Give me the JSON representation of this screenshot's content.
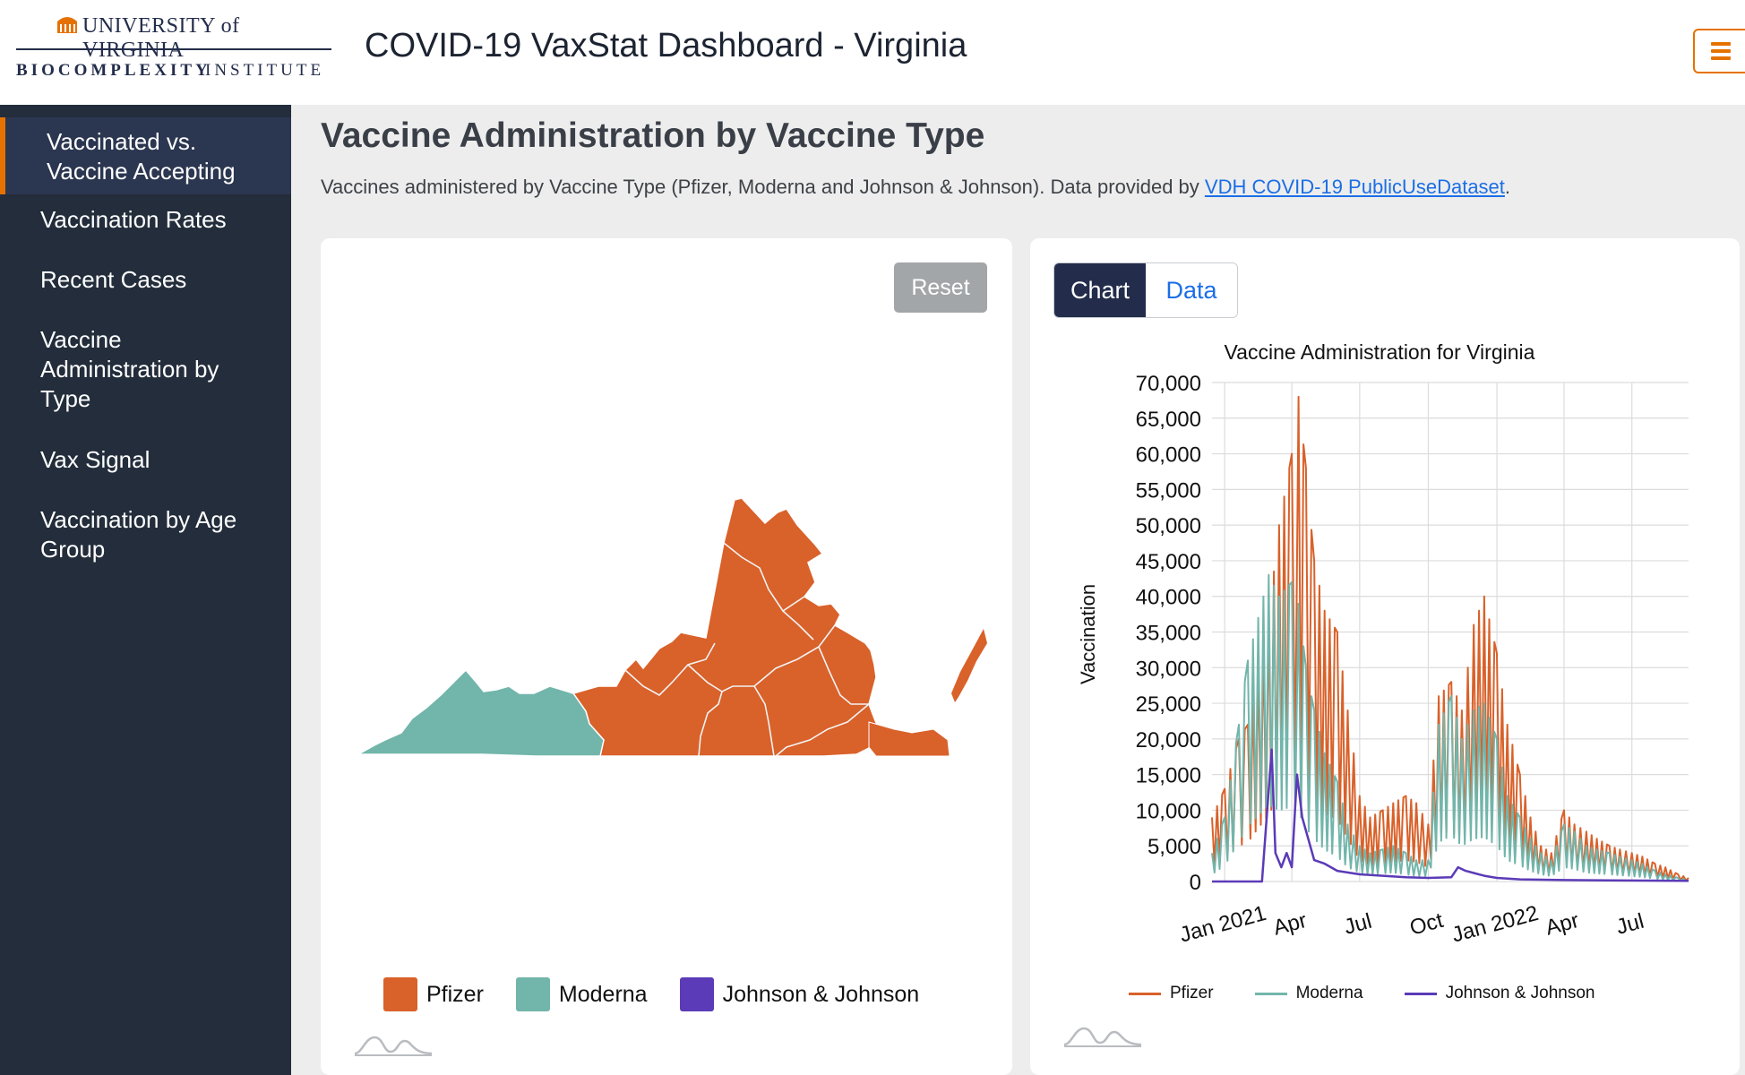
{
  "header": {
    "logo_university": "UNIVERSITY of VIRGINIA",
    "logo_biocomplexity": "BIOCOMPLEXITY",
    "logo_institute": "INSTITUTE",
    "title": "COVID-19 VaxStat Dashboard - Virginia",
    "menu_icon": "hamburger-menu-icon"
  },
  "sidebar": {
    "items": [
      {
        "label": "Vaccinated vs. Vaccine Accepting",
        "active": true
      },
      {
        "label": "Vaccination Rates",
        "active": false
      },
      {
        "label": "Recent Cases",
        "active": false
      },
      {
        "label": "Vaccine Administration by Type",
        "active": false
      },
      {
        "label": "Vax Signal",
        "active": false
      },
      {
        "label": "Vaccination by Age Group",
        "active": false
      }
    ]
  },
  "main": {
    "title": "Vaccine Administration by Vaccine Type",
    "description_prefix": "Vaccines administered by Vaccine Type (Pfizer, Moderna and Johnson & Johnson). Data provided by ",
    "description_link": "VDH COVID-19 PublicUseDataset",
    "description_suffix": "."
  },
  "map_card": {
    "reset_label": "Reset",
    "legend": [
      {
        "label": "Pfizer",
        "color": "#d9612a"
      },
      {
        "label": "Moderna",
        "color": "#72b5ab"
      },
      {
        "label": "Johnson & Johnson",
        "color": "#5b3bb7"
      }
    ]
  },
  "chart_card": {
    "tabs": [
      {
        "label": "Chart",
        "active": true
      },
      {
        "label": "Data",
        "active": false
      }
    ]
  },
  "chart_data": {
    "type": "line",
    "title": "Vaccine Administration for Virginia",
    "xlabel": "",
    "ylabel": "Vaccination",
    "ylim": [
      0,
      70000
    ],
    "y_ticks": [
      "0",
      "5,000",
      "10,000",
      "15,000",
      "20,000",
      "25,000",
      "30,000",
      "35,000",
      "40,000",
      "45,000",
      "50,000",
      "55,000",
      "60,000",
      "65,000",
      "70,000"
    ],
    "x_ticks": [
      "Jan 2021",
      "Apr",
      "Jul",
      "Oct",
      "Jan 2022",
      "Apr",
      "Jul"
    ],
    "x_tick_dates": [
      "2021-01-01",
      "2021-04-01",
      "2021-07-01",
      "2021-10-01",
      "2022-01-01",
      "2022-04-01",
      "2022-07-01"
    ],
    "x_range": [
      "2020-12-15",
      "2022-09-15"
    ],
    "grid": true,
    "legend_position": "bottom",
    "series": [
      {
        "name": "Pfizer",
        "color": "#d9612a",
        "x": [
          "2020-12-15",
          "2021-01-01",
          "2021-01-20",
          "2021-02-01",
          "2021-02-15",
          "2021-03-01",
          "2021-03-15",
          "2021-04-01",
          "2021-04-10",
          "2021-04-20",
          "2021-05-01",
          "2021-05-15",
          "2021-06-01",
          "2021-06-15",
          "2021-07-01",
          "2021-07-15",
          "2021-08-01",
          "2021-08-15",
          "2021-09-01",
          "2021-09-15",
          "2021-10-01",
          "2021-10-15",
          "2021-11-01",
          "2021-11-15",
          "2021-12-01",
          "2021-12-15",
          "2022-01-01",
          "2022-01-15",
          "2022-02-01",
          "2022-02-15",
          "2022-03-01",
          "2022-03-15",
          "2022-04-01",
          "2022-04-15",
          "2022-05-01",
          "2022-05-15",
          "2022-06-01",
          "2022-06-15",
          "2022-07-01",
          "2022-07-15",
          "2022-08-01",
          "2022-08-15",
          "2022-09-01",
          "2022-09-15"
        ],
        "values": [
          9000,
          13000,
          20000,
          22000,
          30000,
          37000,
          50000,
          60000,
          68000,
          58000,
          45000,
          38000,
          35000,
          24000,
          12000,
          9000,
          10000,
          11000,
          12000,
          11000,
          8000,
          26000,
          28000,
          24000,
          36000,
          40000,
          32000,
          22000,
          15000,
          9000,
          5000,
          4000,
          10000,
          8000,
          7000,
          6000,
          5000,
          4500,
          4000,
          3500,
          2500,
          2000,
          1000,
          500
        ]
      },
      {
        "name": "Moderna",
        "color": "#72b5ab",
        "x": [
          "2020-12-15",
          "2021-01-01",
          "2021-01-20",
          "2021-02-01",
          "2021-02-15",
          "2021-03-01",
          "2021-03-15",
          "2021-04-01",
          "2021-04-10",
          "2021-04-20",
          "2021-05-01",
          "2021-05-15",
          "2021-06-01",
          "2021-06-15",
          "2021-07-01",
          "2021-07-15",
          "2021-08-01",
          "2021-08-15",
          "2021-09-01",
          "2021-09-15",
          "2021-10-01",
          "2021-10-15",
          "2021-11-01",
          "2021-11-15",
          "2021-12-01",
          "2021-12-15",
          "2022-01-01",
          "2022-01-15",
          "2022-02-01",
          "2022-02-15",
          "2022-03-01",
          "2022-03-15",
          "2022-04-01",
          "2022-04-15",
          "2022-05-01",
          "2022-05-15",
          "2022-06-01",
          "2022-06-15",
          "2022-07-01",
          "2022-07-15",
          "2022-08-01",
          "2022-08-15",
          "2022-09-01",
          "2022-09-15"
        ],
        "values": [
          4000,
          9000,
          22000,
          31000,
          37000,
          43000,
          40000,
          42000,
          39000,
          30000,
          24000,
          18000,
          14000,
          8000,
          5000,
          4000,
          4500,
          5000,
          4000,
          3000,
          3000,
          22000,
          26000,
          20000,
          24000,
          25000,
          20000,
          12000,
          9000,
          6000,
          4000,
          3000,
          8000,
          7000,
          5000,
          4500,
          4000,
          3500,
          3000,
          2500,
          1500,
          1000,
          500,
          200
        ]
      },
      {
        "name": "Johnson & Johnson",
        "color": "#5b3bb7",
        "x": [
          "2020-12-15",
          "2021-02-20",
          "2021-03-05",
          "2021-03-10",
          "2021-03-18",
          "2021-03-25",
          "2021-04-01",
          "2021-04-08",
          "2021-04-15",
          "2021-05-01",
          "2021-05-15",
          "2021-06-01",
          "2021-07-01",
          "2021-08-01",
          "2021-09-01",
          "2021-10-01",
          "2021-11-01",
          "2021-11-10",
          "2021-11-20",
          "2021-12-01",
          "2021-12-15",
          "2022-01-01",
          "2022-02-01",
          "2022-04-01",
          "2022-06-01",
          "2022-09-15"
        ],
        "values": [
          0,
          0,
          18500,
          4000,
          2000,
          4000,
          2000,
          15000,
          9000,
          3000,
          2500,
          1500,
          1000,
          800,
          600,
          500,
          600,
          2000,
          1500,
          1200,
          800,
          500,
          300,
          200,
          150,
          100
        ]
      }
    ]
  }
}
